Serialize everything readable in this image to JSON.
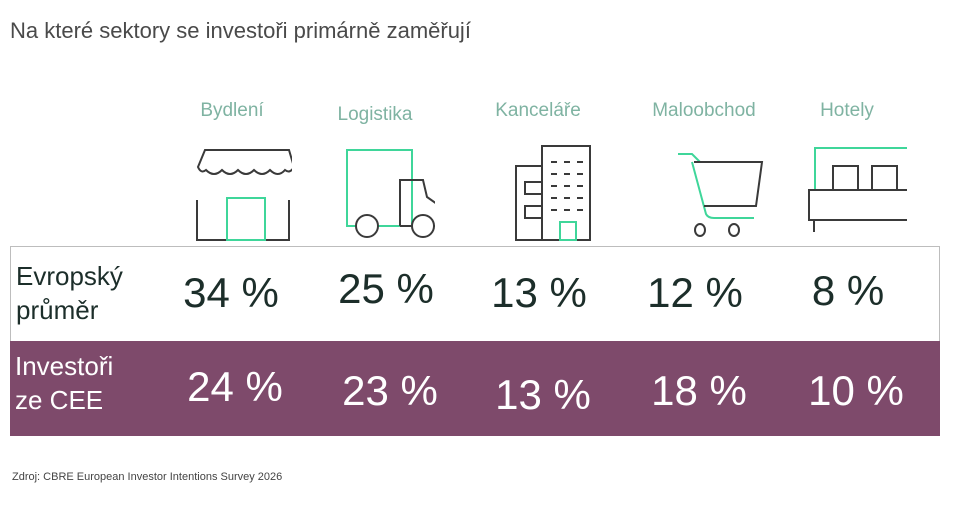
{
  "title": "Na které sektory se investoři primárně zaměřují",
  "sectors": [
    {
      "label": "Bydlení",
      "icon": "storefront-icon"
    },
    {
      "label": "Logistika",
      "icon": "truck-icon"
    },
    {
      "label": "Kanceláře",
      "icon": "office-building-icon"
    },
    {
      "label": "Maloobchod",
      "icon": "shopping-cart-icon"
    },
    {
      "label": "Hotely",
      "icon": "bed-icon"
    }
  ],
  "rows": [
    {
      "label_line1": "Evropský",
      "label_line2": "průměr",
      "values": [
        "34 %",
        "25 %",
        "13 %",
        "12 %",
        "8 %"
      ]
    },
    {
      "label_line1": "Investoři",
      "label_line2": "ze CEE",
      "values": [
        "24 %",
        "23 %",
        "13 %",
        "18 %",
        "10 %"
      ]
    }
  ],
  "source": "Zdroj: CBRE European Investor Intentions Survey 2026",
  "colors": {
    "accent_green": "#3fd69a",
    "label_green": "#7fb3a2",
    "cee_band": "#7e4a6b",
    "icon_dark": "#3a3a3a"
  }
}
